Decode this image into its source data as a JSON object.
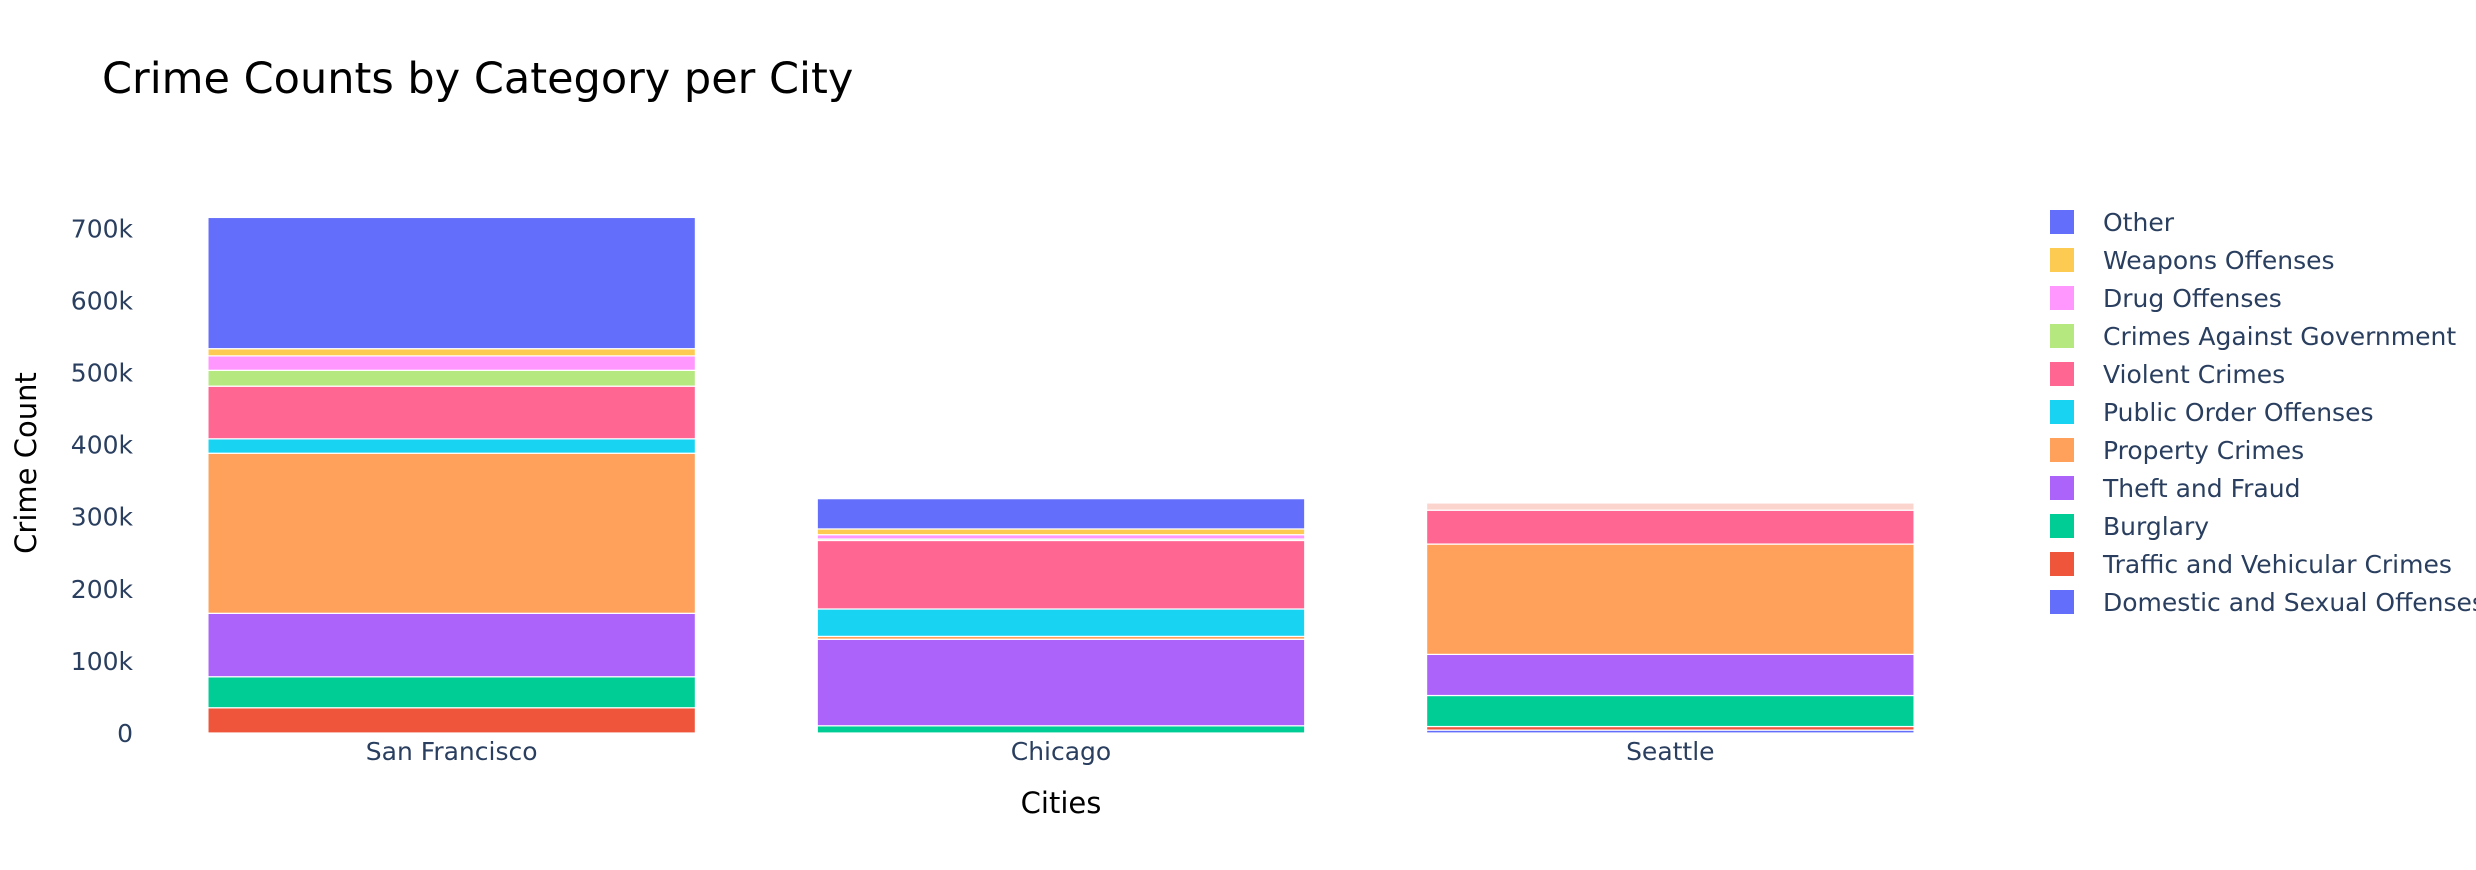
{
  "chart_data": {
    "type": "bar",
    "barmode": "stack",
    "title": "Crime Counts by Category per City",
    "xlabel": "Cities",
    "ylabel": "Crime Count",
    "categories": [
      "San Francisco",
      "Chicago",
      "Seattle"
    ],
    "ylim": [
      0,
      760000
    ],
    "yticks": [
      0,
      100000,
      200000,
      300000,
      400000,
      500000,
      600000,
      700000
    ],
    "ytick_labels": [
      "0",
      "100k",
      "200k",
      "300k",
      "400k",
      "500k",
      "600k",
      "700k"
    ],
    "grid": false,
    "legend_position": "right",
    "series": [
      {
        "name": "Domestic and Sexual Offenses",
        "color": "#636efa",
        "values": [
          0,
          0,
          4000
        ]
      },
      {
        "name": "Traffic and Vehicular Crimes",
        "color": "#EF553B",
        "values": [
          35000,
          0,
          5000
        ]
      },
      {
        "name": "Burglary",
        "color": "#00cc96",
        "values": [
          43000,
          10000,
          43000
        ]
      },
      {
        "name": "Theft and Fraud",
        "color": "#ab63fa",
        "values": [
          88000,
          120000,
          57000
        ]
      },
      {
        "name": "Property Crimes",
        "color": "#FFA15A",
        "values": [
          222000,
          4000,
          153000
        ]
      },
      {
        "name": "Public Order Offenses",
        "color": "#19d3f3",
        "values": [
          20000,
          38000,
          0
        ]
      },
      {
        "name": "Violent Crimes",
        "color": "#FF6692",
        "values": [
          73000,
          95000,
          47000
        ]
      },
      {
        "name": "Crimes Against Government",
        "color": "#B6E880",
        "values": [
          22000,
          2000,
          0
        ]
      },
      {
        "name": "Drug Offenses",
        "color": "#FF97FF",
        "values": [
          20000,
          6000,
          0
        ]
      },
      {
        "name": "Weapons Offenses",
        "color": "#FECB52",
        "values": [
          10000,
          8000,
          0
        ]
      },
      {
        "name": "Other",
        "color": "#636efa",
        "values": [
          182000,
          42000,
          0
        ]
      },
      {
        "name": "",
        "color": "#EF553B",
        "values": [
          0,
          0,
          10000
        ]
      }
    ]
  }
}
